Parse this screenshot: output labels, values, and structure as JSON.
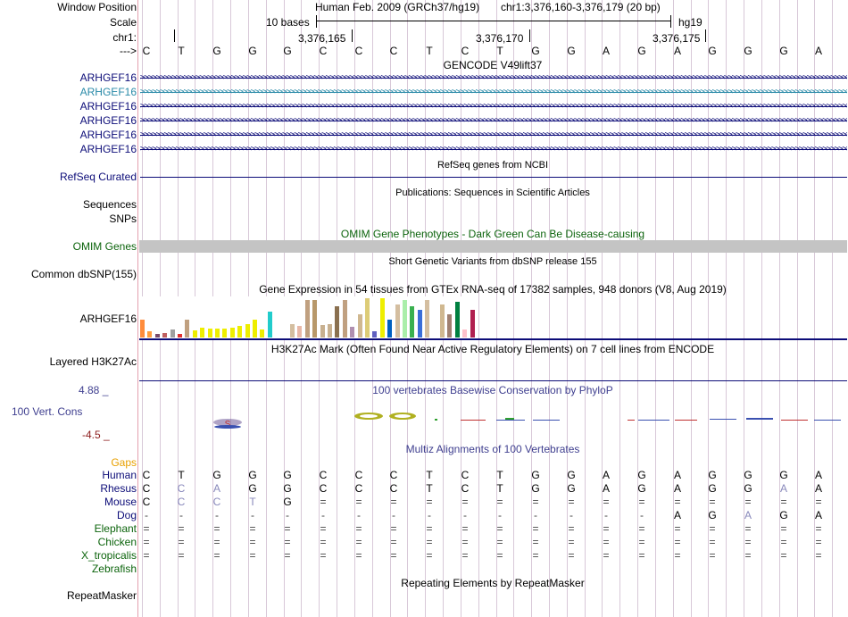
{
  "colors": {
    "gene_dark": "#0c0c78",
    "gene_light": "#2a8aa8",
    "omim_green": "#0c640c",
    "gaps_orange": "#e8a000",
    "cons_blue": "#404090",
    "cons_red": "#8b1a1a",
    "omim_bar": "#c4c4c4"
  },
  "header": {
    "row_window": "Window Position",
    "row_scale": "Scale",
    "row_chr": "chr1:",
    "row_arrow": "--->",
    "assembly": "Human Feb. 2009 (GRCh37/hg19)",
    "position": "chr1:3,376,160-3,376,179 (20 bp)",
    "scale_label": "10 bases",
    "db": "hg19",
    "ticks": [
      "3,376,165",
      "3,376,170",
      "3,376,175"
    ]
  },
  "dna": [
    "C",
    "T",
    "G",
    "G",
    "G",
    "C",
    "C",
    "C",
    "T",
    "C",
    "T",
    "G",
    "G",
    "A",
    "G",
    "A",
    "G",
    "G",
    "G",
    "A"
  ],
  "gencode": {
    "title": "GENCODE V49lift37",
    "genes": [
      "ARHGEF16",
      "ARHGEF16",
      "ARHGEF16",
      "ARHGEF16",
      "ARHGEF16",
      "ARHGEF16"
    ],
    "arrow_pattern": ">>>>>>>>>>>>>>>>>>>>>>>>>>>>>>>>>>>>>>>>>>>>>>>>>>>>>>>>>>>>>>>>>>>>>>>>>>>>>>>>>>>>>>>>>>>>>>>>>>>>>>>>>>>>>>>>>>>>>>>>>>>>>>>>>>>>>>>>>>>>>>>>>>>>>>>>>>>>>>>>>>>>>>>>>>>>>>>>>>>>>>>>>>>>>>>>>>>>>>>>>>"
  },
  "refseq": {
    "title": "RefSeq genes from NCBI",
    "label": "RefSeq Curated"
  },
  "publications": {
    "title": "Publications: Sequences in Scientific Articles",
    "label1": "Sequences",
    "label2": "SNPs"
  },
  "omim": {
    "title": "OMIM Gene Phenotypes - Dark Green Can Be Disease-causing",
    "label": "OMIM Genes"
  },
  "dbsnp": {
    "title": "Short Genetic Variants from dbSNP release 155",
    "label": "Common dbSNP(155)"
  },
  "gtex": {
    "title": "Gene Expression in 54 tissues from GTEx RNA-seq of 17382 samples, 948 donors (V8, Aug 2019)",
    "label": "ARHGEF16",
    "bars": [
      {
        "v": 0.45,
        "c": "#ff8c3c"
      },
      {
        "v": 0.15,
        "c": "#ff9c3c"
      },
      {
        "v": 0.1,
        "c": "#7a4a6a"
      },
      {
        "v": 0.12,
        "c": "#c06060"
      },
      {
        "v": 0.2,
        "c": "#a0a0a0"
      },
      {
        "v": 0.08,
        "c": "#e03030"
      },
      {
        "v": 0.45,
        "c": "#c0a080"
      },
      {
        "v": 0.18,
        "c": "#eeee00"
      },
      {
        "v": 0.25,
        "c": "#eeee00"
      },
      {
        "v": 0.22,
        "c": "#eeee00"
      },
      {
        "v": 0.22,
        "c": "#eeee00"
      },
      {
        "v": 0.22,
        "c": "#eeee00"
      },
      {
        "v": 0.25,
        "c": "#eeee00"
      },
      {
        "v": 0.3,
        "c": "#eeee00"
      },
      {
        "v": 0.35,
        "c": "#eeee00"
      },
      {
        "v": 0.45,
        "c": "#eeee00"
      },
      {
        "v": 0.2,
        "c": "#eeee00"
      },
      {
        "v": 0.65,
        "c": "#22cccc"
      },
      {
        "v": 0.0,
        "c": "#ffffff"
      },
      {
        "v": 0.0,
        "c": "#ffffff"
      },
      {
        "v": 0.35,
        "c": "#d4bea0"
      },
      {
        "v": 0.3,
        "c": "#e8b8a8"
      },
      {
        "v": 0.95,
        "c": "#c0a080"
      },
      {
        "v": 0.95,
        "c": "#b8986a"
      },
      {
        "v": 0.32,
        "c": "#c8b090"
      },
      {
        "v": 0.35,
        "c": "#c8b090"
      },
      {
        "v": 0.8,
        "c": "#8a7050"
      },
      {
        "v": 0.95,
        "c": "#c0a080"
      },
      {
        "v": 0.28,
        "c": "#b090b0"
      },
      {
        "v": 0.6,
        "c": "#d0b890"
      },
      {
        "v": 1.0,
        "c": "#ddcc77"
      },
      {
        "v": 0.15,
        "c": "#6060c0"
      },
      {
        "v": 1.0,
        "c": "#eeee00"
      },
      {
        "v": 0.45,
        "c": "#0060c0"
      },
      {
        "v": 0.85,
        "c": "#d4bea0"
      },
      {
        "v": 0.95,
        "c": "#aaeeaa"
      },
      {
        "v": 0.8,
        "c": "#3ab050"
      },
      {
        "v": 0.7,
        "c": "#3a6ed8"
      },
      {
        "v": 0.95,
        "c": "#d4bea0"
      },
      {
        "v": 0.1,
        "c": "#ffffff"
      },
      {
        "v": 0.85,
        "c": "#d0b890"
      },
      {
        "v": 0.6,
        "c": "#a08070"
      },
      {
        "v": 0.9,
        "c": "#008040"
      },
      {
        "v": 0.2,
        "c": "#ffc0cb"
      },
      {
        "v": 0.7,
        "c": "#b02050"
      }
    ]
  },
  "h3k27ac": {
    "title": "H3K27Ac Mark (Often Found Near Active Regulatory Elements) on 7 cell lines from ENCODE",
    "label": "Layered H3K27Ac"
  },
  "conservation": {
    "title": "100 vertebrates Basewise Conservation by PhyloP",
    "label": "100 Vert. Cons",
    "max": "4.88 _",
    "min": "-4.5 _"
  },
  "multiz": {
    "title": "Multiz Alignments of 100 Vertebrates",
    "gaps_label": "Gaps",
    "species": [
      {
        "name": "Human",
        "seq": [
          "C",
          "T",
          "G",
          "G",
          "G",
          "C",
          "C",
          "C",
          "T",
          "C",
          "T",
          "G",
          "G",
          "A",
          "G",
          "A",
          "G",
          "G",
          "G",
          "A"
        ],
        "gray": []
      },
      {
        "name": "Rhesus",
        "seq": [
          "C",
          "C",
          "A",
          "G",
          "G",
          "C",
          "C",
          "C",
          "T",
          "C",
          "T",
          "G",
          "G",
          "A",
          "G",
          "A",
          "G",
          "G",
          "A",
          "A"
        ],
        "gray": [
          1,
          2,
          18
        ]
      },
      {
        "name": "Mouse",
        "seq": [
          "C",
          "C",
          "C",
          "T",
          "G",
          "=",
          "=",
          "=",
          "=",
          "=",
          "=",
          "=",
          "=",
          "=",
          "=",
          "=",
          "=",
          "=",
          "=",
          "="
        ],
        "gray": [
          1,
          2,
          3
        ]
      },
      {
        "name": "Dog",
        "seq": [
          "-",
          "-",
          "-",
          "-",
          "-",
          "-",
          "-",
          "-",
          "-",
          "-",
          "-",
          "-",
          "-",
          "-",
          "-",
          "A",
          "G",
          "A",
          "G",
          "A"
        ],
        "gray": [
          17
        ]
      },
      {
        "name": "Elephant",
        "seq": [
          "=",
          "=",
          "=",
          "=",
          "=",
          "=",
          "=",
          "=",
          "=",
          "=",
          "=",
          "=",
          "=",
          "=",
          "=",
          "=",
          "=",
          "=",
          "=",
          "="
        ],
        "gray": []
      },
      {
        "name": "Chicken",
        "seq": [
          "=",
          "=",
          "=",
          "=",
          "=",
          "=",
          "=",
          "=",
          "=",
          "=",
          "=",
          "=",
          "=",
          "=",
          "=",
          "=",
          "=",
          "=",
          "=",
          "="
        ],
        "gray": []
      },
      {
        "name": "X_tropicalis",
        "seq": [
          "=",
          "=",
          "=",
          "=",
          "=",
          "=",
          "=",
          "=",
          "=",
          "=",
          "=",
          "=",
          "=",
          "=",
          "=",
          "=",
          "=",
          "=",
          "=",
          "="
        ],
        "gray": []
      },
      {
        "name": "Zebrafish",
        "seq": [],
        "gray": []
      }
    ]
  },
  "repeatmasker": {
    "title": "Repeating Elements by RepeatMasker",
    "label": "RepeatMasker"
  }
}
